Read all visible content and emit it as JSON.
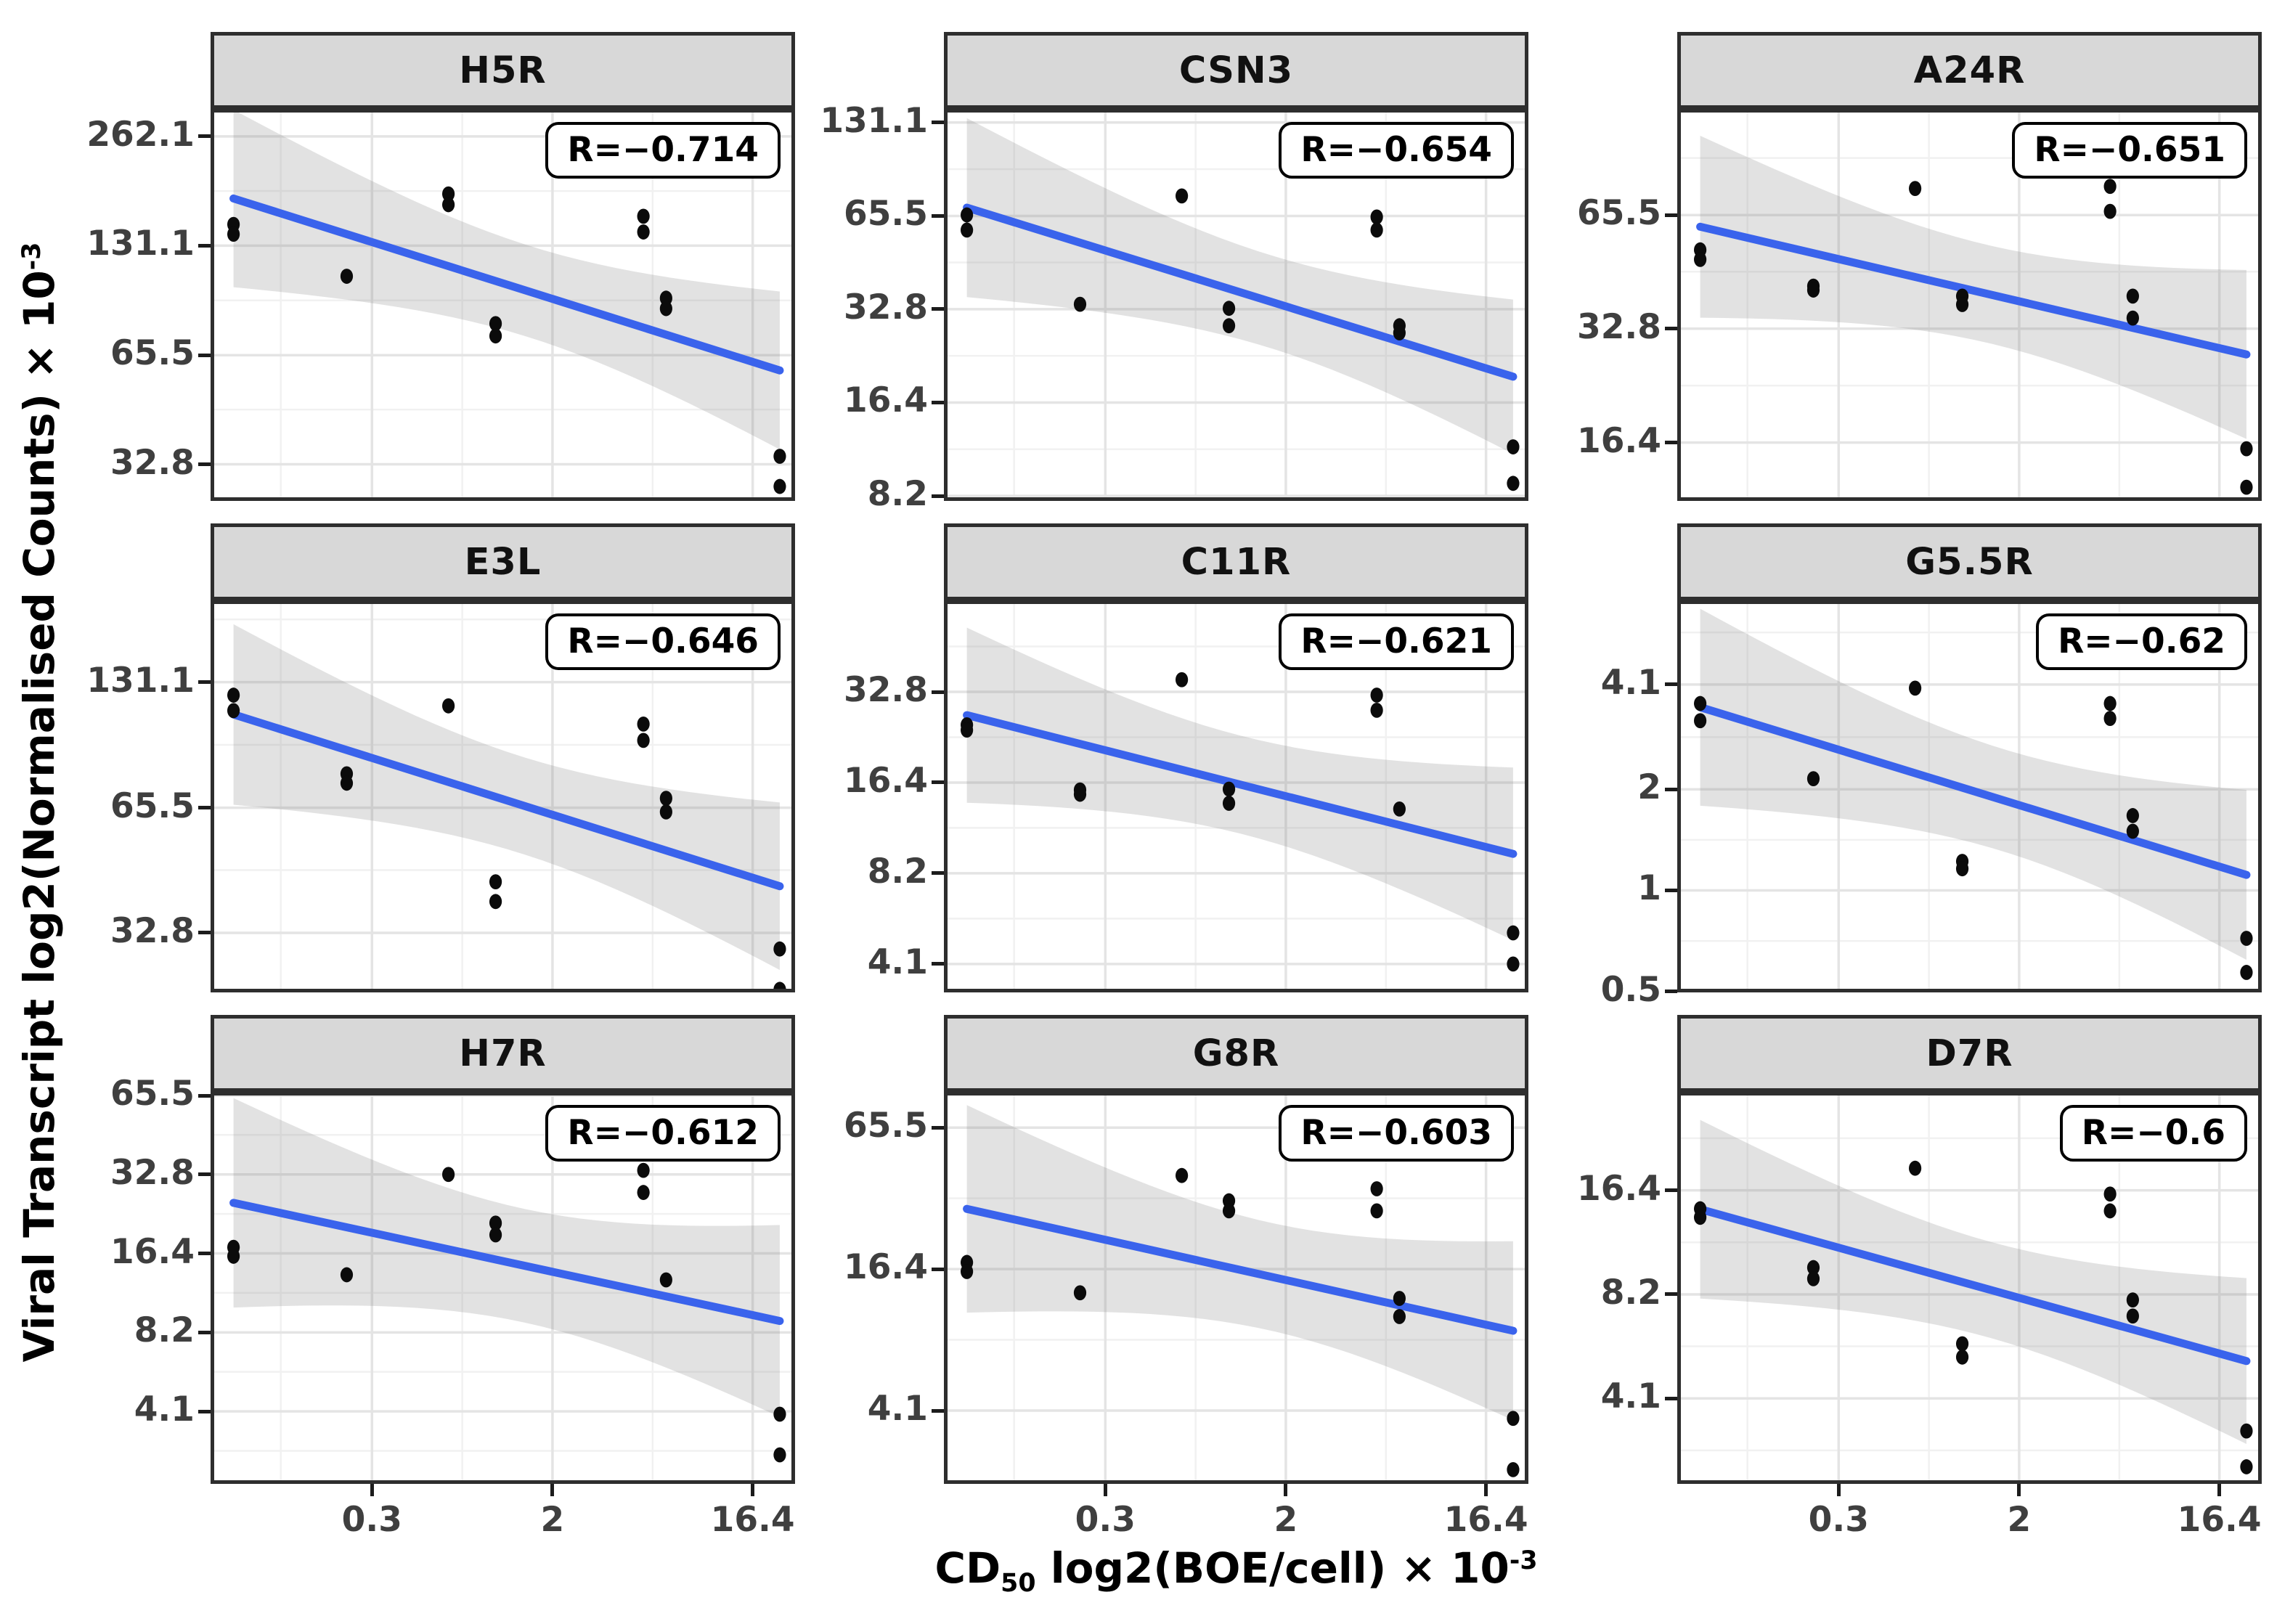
{
  "chart_data": {
    "type": "scatter",
    "description": "Faceted scatter plots of viral transcript expression versus CD50, log2 scales, with linear fits, 95% confidence bands and Pearson R labels",
    "x_axis_title": {
      "pre": "CD",
      "sub": "50",
      "mid": " log2(BOE/cell) × 10",
      "sup": "-3"
    },
    "y_axis_title": {
      "main": "Viral Transcript log2(Normalised Counts) × 10",
      "sup": "-3"
    },
    "x_axis": {
      "domain": [
        0.055,
        25.6
      ],
      "ticks": [
        [
          0.3,
          "0.3"
        ],
        [
          2,
          "2"
        ],
        [
          16.4,
          "16.4"
        ]
      ],
      "minor": [
        0.115,
        0.775,
        5.73
      ],
      "scale": "log2"
    },
    "style": {
      "line_color": "#3a63ec",
      "band_color": "rgba(125,125,125,0.22)",
      "point_color": "#0b0b0b",
      "grid_major": "#e4e4e4",
      "grid_minor": "#f1f1f1",
      "panel_border": "#2e2e2e",
      "strip_fill": "#d8d8d8",
      "tick_text": "#3f3f3f",
      "legend": "none",
      "grid": "on"
    },
    "panels": [
      {
        "title": "H5R",
        "r_label": "R=−0.714",
        "y_domain": [
          26,
          312
        ],
        "y_ticks": [
          [
            262.1,
            "262.1"
          ],
          [
            131.1,
            "131.1"
          ],
          [
            65.5,
            "65.5"
          ],
          [
            32.8,
            "32.8"
          ]
        ],
        "y_minor": [
          46.4,
          92.7,
          185.4
        ],
        "points": [
          [
            0.07,
            150
          ],
          [
            0.07,
            141
          ],
          [
            0.23,
            108
          ],
          [
            0.67,
            182
          ],
          [
            0.67,
            170
          ],
          [
            1.1,
            80
          ],
          [
            1.1,
            74
          ],
          [
            5.2,
            158
          ],
          [
            5.2,
            143
          ],
          [
            6.6,
            94
          ],
          [
            6.6,
            88
          ],
          [
            21.8,
            34.5
          ],
          [
            21.8,
            28.5
          ]
        ]
      },
      {
        "title": "CSN3",
        "r_label": "R=−0.654",
        "y_domain": [
          7.9,
          145
        ],
        "y_ticks": [
          [
            131.1,
            "131.1"
          ],
          [
            65.5,
            "65.5"
          ],
          [
            32.8,
            "32.8"
          ],
          [
            16.4,
            "16.4"
          ],
          [
            8.2,
            "8.2"
          ]
        ],
        "y_minor": [
          11.6,
          23.2,
          46.4,
          92.7
        ],
        "points": [
          [
            0.07,
            66
          ],
          [
            0.07,
            59
          ],
          [
            0.23,
            34
          ],
          [
            0.67,
            76
          ],
          [
            1.1,
            33
          ],
          [
            1.1,
            29
          ],
          [
            5.2,
            65
          ],
          [
            5.2,
            59
          ],
          [
            6.6,
            29
          ],
          [
            6.6,
            27.5
          ],
          [
            21.8,
            11.8
          ],
          [
            21.8,
            9.0
          ]
        ]
      },
      {
        "title": "A24R",
        "r_label": "R=−0.651",
        "y_domain": [
          11.5,
          125
        ],
        "y_ticks": [
          [
            65.5,
            "65.5"
          ],
          [
            32.8,
            "32.8"
          ],
          [
            16.4,
            "16.4"
          ]
        ],
        "y_minor": [
          11.6,
          23.2,
          46.4,
          92.7
        ],
        "points": [
          [
            0.07,
            53
          ],
          [
            0.07,
            50
          ],
          [
            0.23,
            42.5
          ],
          [
            0.23,
            41.5
          ],
          [
            0.67,
            77
          ],
          [
            1.1,
            40
          ],
          [
            1.1,
            38
          ],
          [
            5.2,
            78
          ],
          [
            5.2,
            67
          ],
          [
            6.6,
            40
          ],
          [
            6.6,
            35
          ],
          [
            21.8,
            15.8
          ],
          [
            21.8,
            12.5
          ]
        ]
      },
      {
        "title": "E3L",
        "r_label": "R=−0.646",
        "y_domain": [
          23.6,
          206
        ],
        "y_ticks": [
          [
            131.1,
            "131.1"
          ],
          [
            65.5,
            "65.5"
          ],
          [
            32.8,
            "32.8"
          ]
        ],
        "y_minor": [
          46.4,
          92.7,
          185.4
        ],
        "points": [
          [
            0.07,
            122
          ],
          [
            0.07,
            112
          ],
          [
            0.23,
            79
          ],
          [
            0.23,
            75
          ],
          [
            0.67,
            115
          ],
          [
            1.1,
            43.5
          ],
          [
            1.1,
            39
          ],
          [
            5.2,
            104
          ],
          [
            5.2,
            95
          ],
          [
            6.6,
            69
          ],
          [
            6.6,
            64
          ],
          [
            21.8,
            30
          ],
          [
            21.8,
            24
          ]
        ]
      },
      {
        "title": "C11R",
        "r_label": "R=−0.621",
        "y_domain": [
          3.3,
          66
        ],
        "y_ticks": [
          [
            32.8,
            "32.8"
          ],
          [
            16.4,
            "16.4"
          ],
          [
            8.2,
            "8.2"
          ],
          [
            4.1,
            "4.1"
          ]
        ],
        "y_minor": [
          5.8,
          11.6,
          23.2,
          46.4
        ],
        "points": [
          [
            0.07,
            25.5
          ],
          [
            0.07,
            24.5
          ],
          [
            0.23,
            15.5
          ],
          [
            0.23,
            15
          ],
          [
            0.67,
            36
          ],
          [
            1.1,
            15.6
          ],
          [
            1.1,
            14
          ],
          [
            5.2,
            32
          ],
          [
            5.2,
            28.5
          ],
          [
            6.6,
            13.4
          ],
          [
            21.8,
            5.2
          ],
          [
            21.8,
            4.1
          ]
        ]
      },
      {
        "title": "G5.5R",
        "r_label": "R=−0.62",
        "y_domain": [
          0.497,
          7.3
        ],
        "y_ticks": [
          [
            4.1,
            "4.1"
          ],
          [
            2,
            "2"
          ],
          [
            1,
            "1"
          ],
          [
            0.5,
            "0.5"
          ]
        ],
        "y_minor": [
          0.707,
          1.414,
          2.86,
          5.86
        ],
        "points": [
          [
            0.07,
            3.6
          ],
          [
            0.07,
            3.2
          ],
          [
            0.23,
            2.15
          ],
          [
            0.67,
            4.0
          ],
          [
            1.1,
            1.22
          ],
          [
            1.1,
            1.16
          ],
          [
            5.2,
            3.6
          ],
          [
            5.2,
            3.25
          ],
          [
            6.6,
            1.67
          ],
          [
            6.6,
            1.5
          ],
          [
            21.8,
            0.72
          ],
          [
            21.8,
            0.57
          ]
        ]
      },
      {
        "title": "H7R",
        "r_label": "R=−0.612",
        "y_domain": [
          2.17,
          67.7
        ],
        "y_ticks": [
          [
            65.5,
            "65.5"
          ],
          [
            32.8,
            "32.8"
          ],
          [
            16.4,
            "16.4"
          ],
          [
            8.2,
            "8.2"
          ],
          [
            4.1,
            "4.1"
          ]
        ],
        "y_minor": [
          2.9,
          5.8,
          11.6,
          23.2,
          46.4
        ],
        "points": [
          [
            0.07,
            17.3
          ],
          [
            0.07,
            16
          ],
          [
            0.23,
            13.6
          ],
          [
            0.67,
            32.8
          ],
          [
            1.1,
            21.4
          ],
          [
            1.1,
            19.3
          ],
          [
            5.2,
            34
          ],
          [
            5.2,
            28
          ],
          [
            6.6,
            13
          ],
          [
            21.8,
            4.0
          ],
          [
            21.8,
            2.8
          ]
        ]
      },
      {
        "title": "G8R",
        "r_label": "R=−0.603",
        "y_domain": [
          2.0,
          93
        ],
        "y_ticks": [
          [
            65.5,
            "65.5"
          ],
          [
            16.4,
            "16.4"
          ],
          [
            4.1,
            "4.1"
          ]
        ],
        "y_minor": [
          2.05,
          8.2,
          32.8
        ],
        "points": [
          [
            0.07,
            17.5
          ],
          [
            0.07,
            16
          ],
          [
            0.23,
            13
          ],
          [
            0.67,
            41
          ],
          [
            1.1,
            32
          ],
          [
            1.1,
            29
          ],
          [
            5.2,
            36
          ],
          [
            5.2,
            29
          ],
          [
            6.6,
            12.3
          ],
          [
            6.6,
            10.3
          ],
          [
            21.8,
            3.8
          ],
          [
            21.8,
            2.3
          ]
        ]
      },
      {
        "title": "D7R",
        "r_label": "R=−0.6",
        "y_domain": [
          2.32,
          31.6
        ],
        "y_ticks": [
          [
            16.4,
            "16.4"
          ],
          [
            8.2,
            "8.2"
          ],
          [
            4.1,
            "4.1"
          ]
        ],
        "y_minor": [
          2.9,
          5.8,
          11.6,
          23.2
        ],
        "points": [
          [
            0.07,
            14.5
          ],
          [
            0.07,
            13.7
          ],
          [
            0.23,
            9.8
          ],
          [
            0.23,
            9.1
          ],
          [
            0.67,
            19
          ],
          [
            1.1,
            5.9
          ],
          [
            1.1,
            5.4
          ],
          [
            5.2,
            16
          ],
          [
            5.2,
            14.3
          ],
          [
            6.6,
            7.9
          ],
          [
            6.6,
            7.1
          ],
          [
            21.8,
            3.3
          ],
          [
            21.8,
            2.6
          ]
        ]
      }
    ]
  }
}
